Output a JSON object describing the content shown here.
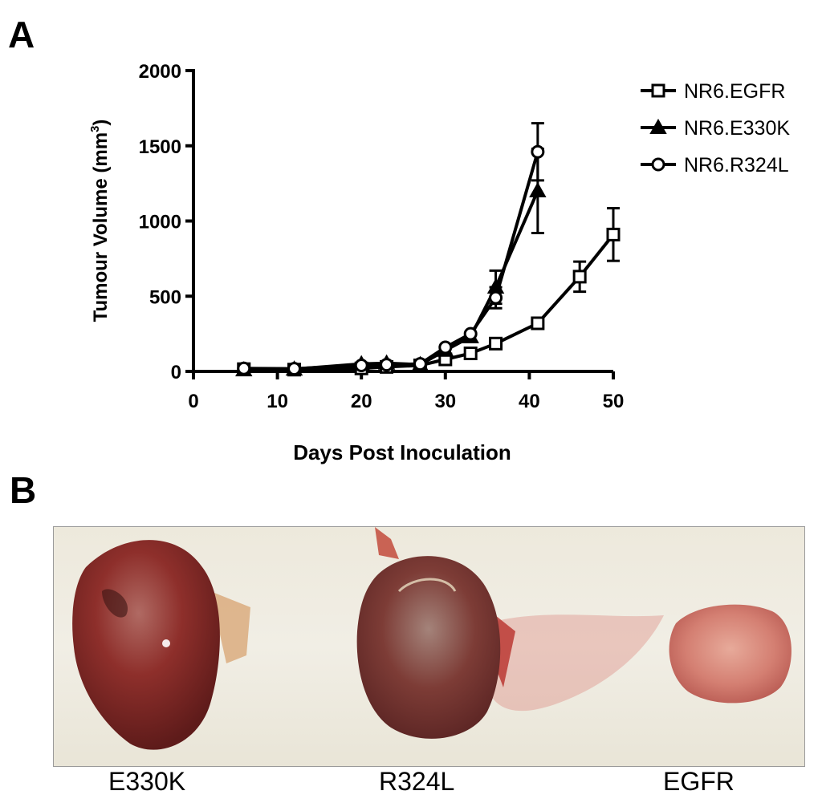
{
  "panels": {
    "a": "A",
    "b": "B"
  },
  "chart_data": {
    "type": "line",
    "xlabel": "Days Post Inoculation",
    "ylabel_main": "Tumour Volume (mm",
    "ylabel_sup": "3",
    "ylabel_end": ")",
    "xlim": [
      0,
      50
    ],
    "ylim": [
      0,
      2000
    ],
    "xticks": [
      0,
      10,
      20,
      30,
      40,
      50
    ],
    "yticks": [
      0,
      500,
      1000,
      1500,
      2000
    ],
    "grid": false,
    "legend_position": "top-right",
    "series": [
      {
        "name": "NR6.EGFR",
        "marker": "square",
        "x": [
          6,
          12,
          20,
          23,
          27,
          30,
          33,
          36,
          41,
          46,
          50
        ],
        "y": [
          15,
          12,
          20,
          30,
          40,
          80,
          120,
          185,
          320,
          630,
          910
        ],
        "err": [
          0,
          0,
          0,
          0,
          0,
          0,
          0,
          0,
          0,
          100,
          175
        ]
      },
      {
        "name": "NR6.E330K",
        "marker": "triangle",
        "x": [
          6,
          12,
          20,
          23,
          27,
          30,
          33,
          36,
          41
        ],
        "y": [
          10,
          15,
          50,
          55,
          45,
          140,
          230,
          560,
          1200
        ],
        "err": [
          0,
          0,
          0,
          0,
          0,
          0,
          0,
          110,
          280
        ]
      },
      {
        "name": "NR6.R324L",
        "marker": "circle",
        "x": [
          6,
          12,
          20,
          23,
          27,
          30,
          33,
          36,
          41
        ],
        "y": [
          20,
          18,
          40,
          45,
          50,
          160,
          250,
          490,
          1460
        ],
        "err": [
          0,
          0,
          0,
          0,
          0,
          0,
          0,
          70,
          190
        ]
      }
    ]
  },
  "photo_captions": [
    "E330K",
    "R324L",
    "EGFR"
  ]
}
